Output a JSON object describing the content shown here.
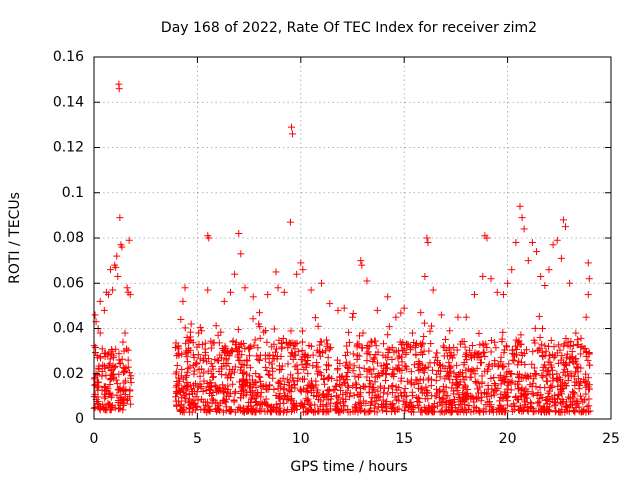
{
  "chart_data": {
    "type": "scatter",
    "title": "Day 168 of 2022, Rate Of TEC Index for receiver zim2",
    "xlabel": "GPS time / hours",
    "ylabel": "ROTI / TECUs",
    "xlim": [
      0,
      25
    ],
    "ylim": [
      0,
      0.16
    ],
    "xticks": [
      0,
      5,
      10,
      15,
      20,
      25
    ],
    "yticks": [
      0,
      0.02,
      0.04,
      0.06,
      0.08,
      0.1,
      0.12,
      0.14,
      0.16
    ],
    "xtick_labels": [
      "0",
      "5",
      "10",
      "15",
      "20",
      "25"
    ],
    "ytick_labels": [
      "0",
      "0.02",
      "0.04",
      "0.06",
      "0.08",
      "0.1",
      "0.12",
      "0.14",
      "0.16"
    ],
    "grid": true,
    "marker": "+",
    "color": "#ff0000",
    "series": [
      {
        "values_note": "",
        "points": [
          [
            0.05,
            0.046
          ],
          [
            0.1,
            0.043
          ],
          [
            0.2,
            0.04
          ],
          [
            0.3,
            0.038
          ],
          [
            0.4,
            0.031
          ],
          [
            0.5,
            0.029
          ],
          [
            0.6,
            0.056
          ],
          [
            0.7,
            0.055
          ],
          [
            0.8,
            0.066
          ],
          [
            0.9,
            0.057
          ],
          [
            1.0,
            0.068
          ],
          [
            1.05,
            0.067
          ],
          [
            1.1,
            0.072
          ],
          [
            1.15,
            0.063
          ],
          [
            1.2,
            0.148
          ],
          [
            1.22,
            0.146
          ],
          [
            1.25,
            0.089
          ],
          [
            1.3,
            0.077
          ],
          [
            1.35,
            0.076
          ],
          [
            1.5,
            0.038
          ],
          [
            1.6,
            0.058
          ],
          [
            1.65,
            0.056
          ],
          [
            1.7,
            0.079
          ],
          [
            1.75,
            0.055
          ],
          [
            0.3,
            0.052
          ],
          [
            0.5,
            0.048
          ],
          [
            1.4,
            0.034
          ],
          [
            1.45,
            0.03
          ],
          [
            4.0,
            0.028
          ],
          [
            4.1,
            0.031
          ],
          [
            4.2,
            0.044
          ],
          [
            4.3,
            0.052
          ],
          [
            4.4,
            0.058
          ],
          [
            4.5,
            0.036
          ],
          [
            4.7,
            0.042
          ],
          [
            5.2,
            0.039
          ],
          [
            5.5,
            0.081
          ],
          [
            5.55,
            0.08
          ],
          [
            5.5,
            0.057
          ],
          [
            6.0,
            0.037
          ],
          [
            6.3,
            0.052
          ],
          [
            6.6,
            0.056
          ],
          [
            6.8,
            0.064
          ],
          [
            7.0,
            0.082
          ],
          [
            7.1,
            0.073
          ],
          [
            7.3,
            0.058
          ],
          [
            7.7,
            0.054
          ],
          [
            8.0,
            0.047
          ],
          [
            8.4,
            0.055
          ],
          [
            8.8,
            0.065
          ],
          [
            8.9,
            0.058
          ],
          [
            9.2,
            0.056
          ],
          [
            9.5,
            0.087
          ],
          [
            9.55,
            0.129
          ],
          [
            9.6,
            0.126
          ],
          [
            9.8,
            0.064
          ],
          [
            10.0,
            0.069
          ],
          [
            10.1,
            0.066
          ],
          [
            10.5,
            0.057
          ],
          [
            11.0,
            0.06
          ],
          [
            11.4,
            0.051
          ],
          [
            11.8,
            0.048
          ],
          [
            12.1,
            0.049
          ],
          [
            12.5,
            0.045
          ],
          [
            12.9,
            0.07
          ],
          [
            12.95,
            0.068
          ],
          [
            13.2,
            0.061
          ],
          [
            13.7,
            0.048
          ],
          [
            14.2,
            0.054
          ],
          [
            14.6,
            0.045
          ],
          [
            15.0,
            0.049
          ],
          [
            15.4,
            0.038
          ],
          [
            15.8,
            0.047
          ],
          [
            16.0,
            0.063
          ],
          [
            16.1,
            0.08
          ],
          [
            16.15,
            0.078
          ],
          [
            16.4,
            0.057
          ],
          [
            16.8,
            0.046
          ],
          [
            17.2,
            0.039
          ],
          [
            17.6,
            0.045
          ],
          [
            18.0,
            0.045
          ],
          [
            18.4,
            0.055
          ],
          [
            18.8,
            0.063
          ],
          [
            18.9,
            0.081
          ],
          [
            19.0,
            0.08
          ],
          [
            19.2,
            0.062
          ],
          [
            19.5,
            0.056
          ],
          [
            19.8,
            0.055
          ],
          [
            20.0,
            0.06
          ],
          [
            20.2,
            0.066
          ],
          [
            20.4,
            0.078
          ],
          [
            20.6,
            0.094
          ],
          [
            20.7,
            0.089
          ],
          [
            20.8,
            0.084
          ],
          [
            21.0,
            0.07
          ],
          [
            21.2,
            0.078
          ],
          [
            21.4,
            0.074
          ],
          [
            21.6,
            0.063
          ],
          [
            21.8,
            0.059
          ],
          [
            22.0,
            0.066
          ],
          [
            22.2,
            0.077
          ],
          [
            22.4,
            0.079
          ],
          [
            22.6,
            0.071
          ],
          [
            22.7,
            0.088
          ],
          [
            22.8,
            0.085
          ],
          [
            23.0,
            0.06
          ],
          [
            23.3,
            0.038
          ],
          [
            23.6,
            0.032
          ],
          [
            23.9,
            0.069
          ],
          [
            23.95,
            0.062
          ],
          [
            23.9,
            0.055
          ],
          [
            23.8,
            0.045
          ]
        ]
      }
    ],
    "dense_regions": [
      {
        "x": [
          0.0,
          1.8
        ],
        "y_low": 0.004,
        "y_high": 0.032
      },
      {
        "x": [
          3.9,
          24.0
        ],
        "y_low": 0.003,
        "y_high": 0.035
      }
    ]
  }
}
